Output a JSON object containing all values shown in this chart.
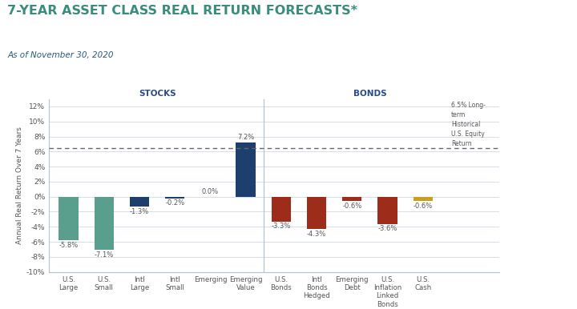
{
  "title": "7-YEAR ASSET CLASS REAL RETURN FORECASTS*",
  "subtitle": "As of November 30, 2020",
  "categories": [
    "U.S.\nLarge",
    "U.S.\nSmall",
    "Intl\nLarge",
    "Intl\nSmall",
    "Emerging",
    "Emerging\nValue",
    "U.S.\nBonds",
    "Intl\nBonds\nHedged",
    "Emerging\nDebt",
    "U.S.\nInflation\nLinked\nBonds",
    "U.S.\nCash"
  ],
  "values": [
    -5.8,
    -7.1,
    -1.3,
    -0.2,
    0.0,
    7.2,
    -3.3,
    -4.3,
    -0.6,
    -3.6,
    -0.6
  ],
  "labels": [
    "-5.8%",
    "-7.1%",
    "-1.3%",
    "-0.2%",
    "0.0%",
    "7.2%",
    "-3.3%",
    "-4.3%",
    "-0.6%",
    "-3.6%",
    "-0.6%"
  ],
  "bar_colors": [
    "#5a9e8e",
    "#5a9e8e",
    "#1c3f6e",
    "#1c3f6e",
    "#1c3f6e",
    "#1c3f6e",
    "#9e2c1a",
    "#9e2c1a",
    "#9e2c1a",
    "#9e2c1a",
    "#c8a020"
  ],
  "section_labels": [
    "STOCKS",
    "BONDS"
  ],
  "section_divider_idx": 5.5,
  "reference_line_y": 6.5,
  "reference_line_label": "6.5% Long-\nterm\nHistorical\nU.S. Equity\nReturn",
  "ylabel": "Annual Real Return Over 7 Years",
  "ylim": [
    -10,
    13
  ],
  "yticks": [
    -10,
    -8,
    -6,
    -4,
    -2,
    0,
    2,
    4,
    6,
    8,
    10,
    12
  ],
  "ytick_labels": [
    "-10%",
    "-8%",
    "-6%",
    "-4%",
    "-2%",
    "0%",
    "2%",
    "4%",
    "6%",
    "8%",
    "10%",
    "12%"
  ],
  "title_color": "#3a8c7c",
  "subtitle_color": "#2a5a7a",
  "section_label_color": "#2a4a8a",
  "background_color": "#ffffff",
  "grid_color": "#cdd9e5",
  "spine_color": "#b0c4d4",
  "text_color": "#555555"
}
